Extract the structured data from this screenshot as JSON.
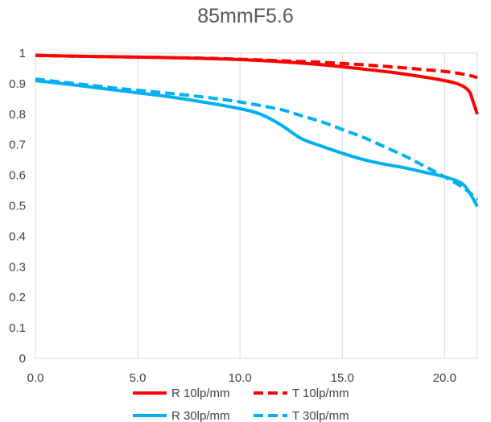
{
  "chart_data": {
    "type": "line",
    "title": "85mmF5.6",
    "xlabel": "",
    "ylabel": "",
    "xlim": [
      0,
      21.6
    ],
    "ylim": [
      0,
      1
    ],
    "x_ticks": [
      "0.0",
      "5.0",
      "10.0",
      "15.0",
      "20.0"
    ],
    "x_tick_values": [
      0,
      5,
      10,
      15,
      20
    ],
    "y_ticks": [
      "0",
      "0.1",
      "0.2",
      "0.3",
      "0.4",
      "0.5",
      "0.6",
      "0.7",
      "0.8",
      "0.9",
      "1"
    ],
    "y_tick_values": [
      0,
      0.1,
      0.2,
      0.3,
      0.4,
      0.5,
      0.6,
      0.7,
      0.8,
      0.9,
      1.0
    ],
    "grid": "vertical",
    "legend_position": "bottom",
    "colors": {
      "red": "#ff0000",
      "blue": "#00b0f0"
    },
    "series": [
      {
        "name": "R 10lp/mm",
        "color": "#ff0000",
        "dash": "solid",
        "x": [
          0,
          2,
          4,
          6,
          8,
          10,
          12,
          14,
          16,
          18,
          20,
          20.8,
          21.2,
          21.4,
          21.6
        ],
        "y": [
          0.993,
          0.99,
          0.988,
          0.986,
          0.983,
          0.979,
          0.972,
          0.962,
          0.948,
          0.932,
          0.91,
          0.895,
          0.875,
          0.84,
          0.8
        ]
      },
      {
        "name": "T 10lp/mm",
        "color": "#ff0000",
        "dash": "dashed",
        "x": [
          0,
          2,
          4,
          6,
          8,
          10,
          12,
          14,
          16,
          18,
          20,
          21,
          21.6
        ],
        "y": [
          0.993,
          0.99,
          0.988,
          0.986,
          0.984,
          0.98,
          0.975,
          0.97,
          0.962,
          0.952,
          0.94,
          0.93,
          0.92
        ]
      },
      {
        "name": "R 30lp/mm",
        "color": "#00b0f0",
        "dash": "solid",
        "x": [
          0,
          2,
          4,
          6,
          8,
          10,
          11,
          12,
          13,
          14,
          15,
          16,
          17,
          18,
          19,
          20,
          20.8,
          21.2,
          21.6
        ],
        "y": [
          0.91,
          0.895,
          0.878,
          0.862,
          0.842,
          0.818,
          0.8,
          0.765,
          0.72,
          0.695,
          0.672,
          0.652,
          0.637,
          0.625,
          0.61,
          0.595,
          0.575,
          0.545,
          0.498
        ]
      },
      {
        "name": "T 30lp/mm",
        "color": "#00b0f0",
        "dash": "dashed",
        "x": [
          0,
          2,
          4,
          6,
          8,
          10,
          12,
          13,
          14,
          15,
          16,
          17,
          18,
          19,
          20,
          21,
          21.6
        ],
        "y": [
          0.915,
          0.9,
          0.885,
          0.872,
          0.858,
          0.84,
          0.815,
          0.795,
          0.775,
          0.75,
          0.725,
          0.695,
          0.665,
          0.63,
          0.595,
          0.555,
          0.52
        ]
      }
    ]
  }
}
